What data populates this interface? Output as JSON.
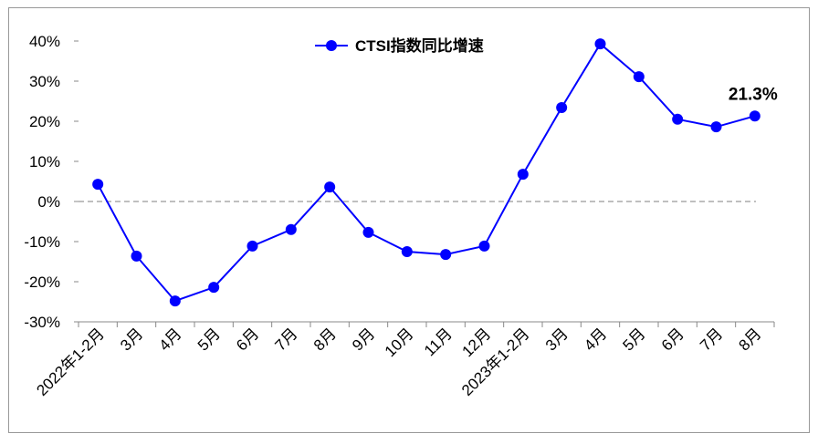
{
  "chart_data": {
    "type": "line",
    "categories": [
      "2022年1-2月",
      "3月",
      "4月",
      "5月",
      "6月",
      "7月",
      "8月",
      "9月",
      "10月",
      "11月",
      "12月",
      "2023年1-2月",
      "3月",
      "4月",
      "5月",
      "6月",
      "7月",
      "8月"
    ],
    "series": [
      {
        "name": "CTSI指数同比增速",
        "color": "#0000ff",
        "values": [
          4.3,
          -13.6,
          -24.8,
          -21.4,
          -11.1,
          -7.0,
          3.6,
          -7.7,
          -12.5,
          -13.2,
          -11.1,
          6.8,
          23.4,
          39.3,
          31.1,
          20.5,
          18.6,
          21.3
        ],
        "value_labels": [
          null,
          null,
          null,
          null,
          null,
          null,
          null,
          null,
          null,
          null,
          null,
          null,
          null,
          null,
          null,
          null,
          null,
          "21.3%"
        ]
      }
    ],
    "ylim": [
      -30,
      40
    ],
    "yticks": [
      {
        "value": -30,
        "label": "-30%"
      },
      {
        "value": -20,
        "label": "-20%"
      },
      {
        "value": -10,
        "label": "-10%"
      },
      {
        "value": 0,
        "label": "0%"
      },
      {
        "value": 10,
        "label": "10%"
      },
      {
        "value": 20,
        "label": "20%"
      },
      {
        "value": 30,
        "label": "30%"
      },
      {
        "value": 40,
        "label": "40%"
      }
    ],
    "legend": "top"
  }
}
